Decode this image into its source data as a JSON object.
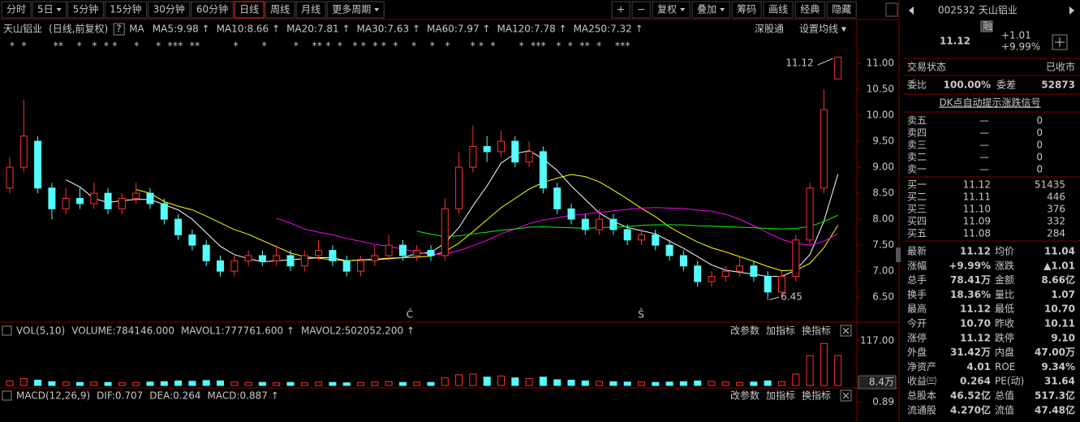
{
  "toolbar": {
    "periods": [
      {
        "label": "分时"
      },
      {
        "label": "5日",
        "dropdown": true
      },
      {
        "label": "5分钟"
      },
      {
        "label": "15分钟"
      },
      {
        "label": "30分钟"
      },
      {
        "label": "60分钟"
      },
      {
        "label": "日线",
        "active": true
      },
      {
        "label": "周线"
      },
      {
        "label": "月线"
      },
      {
        "label": "更多周期",
        "dropdown": true
      }
    ],
    "tools": [
      {
        "label": "+"
      },
      {
        "label": "−"
      },
      {
        "label": "复权",
        "dropdown": true,
        "active": true
      },
      {
        "label": "叠加",
        "dropdown": true
      },
      {
        "label": "筹码"
      },
      {
        "label": "画线"
      },
      {
        "label": "经典"
      },
      {
        "label": "隐藏"
      }
    ]
  },
  "info": {
    "name": "天山铝业",
    "period": "(日线,前复权)",
    "help": "?",
    "ma": "MA",
    "mas": [
      {
        "label": "MA5:9.98 ↑",
        "color": "#ffffff"
      },
      {
        "label": "MA10:8.66 ↑",
        "color": "#ffff00"
      },
      {
        "label": "MA20:7.81 ↑",
        "color": "#ff00ff"
      },
      {
        "label": "MA30:7.63 ↑",
        "color": "#00ff00"
      },
      {
        "label": "MA60:7.97 ↑",
        "color": "#d0d0d0"
      },
      {
        "label": "MA120:7.78 ↑",
        "color": "#54a8ff"
      },
      {
        "label": "MA250:7.32 ↑",
        "color": "#ffffff"
      }
    ],
    "links": [
      "深股通",
      "设置均线 ▾"
    ]
  },
  "chart_data": [
    {
      "type": "candlestick",
      "color_up": "#ff3232",
      "color_down": "#54fcfc",
      "markers": "*  *        **    *   *  * *     *     *  ***  **          *       *        *    ** *  *   * *  * *  *    *    *   *      * *  *       *  ***   *  *  **  *    ***",
      "open": [
        8.6,
        9.0,
        9.5,
        8.6,
        8.2,
        8.4,
        8.3,
        8.5,
        8.2,
        8.4,
        8.5,
        8.3,
        8.0,
        7.7,
        7.5,
        7.2,
        7.0,
        7.2,
        7.3,
        7.2,
        7.3,
        7.1,
        7.3,
        7.4,
        7.2,
        7.0,
        7.2,
        7.3,
        7.5,
        7.3,
        7.4,
        7.3,
        8.2,
        9.0,
        9.4,
        9.3,
        9.5,
        9.1,
        9.3,
        8.6,
        8.2,
        8.0,
        7.8,
        8.0,
        7.8,
        7.6,
        7.7,
        7.5,
        7.3,
        7.1,
        6.8,
        6.9,
        7.0,
        7.1,
        6.9,
        6.6,
        6.9,
        7.6,
        8.6,
        10.7
      ],
      "high": [
        9.2,
        10.3,
        9.6,
        8.7,
        8.6,
        8.6,
        8.7,
        8.6,
        8.5,
        8.7,
        8.6,
        8.4,
        8.1,
        7.8,
        7.6,
        7.3,
        7.3,
        7.4,
        7.4,
        7.5,
        7.4,
        7.4,
        7.6,
        7.5,
        7.3,
        7.3,
        7.5,
        7.7,
        7.6,
        7.5,
        7.5,
        8.4,
        9.3,
        9.8,
        9.6,
        9.7,
        9.6,
        9.5,
        9.4,
        8.7,
        8.3,
        8.1,
        8.2,
        8.1,
        7.9,
        7.8,
        7.8,
        7.6,
        7.4,
        7.2,
        7.0,
        7.1,
        7.3,
        7.2,
        7.0,
        7.0,
        7.7,
        8.7,
        10.5,
        11.12
      ],
      "low": [
        8.5,
        8.9,
        8.5,
        8.0,
        8.1,
        8.2,
        8.2,
        8.1,
        8.1,
        8.3,
        8.2,
        7.9,
        7.6,
        7.4,
        7.1,
        6.9,
        6.9,
        7.1,
        7.1,
        7.1,
        7.0,
        7.0,
        7.2,
        7.1,
        6.9,
        6.9,
        7.1,
        7.2,
        7.2,
        7.2,
        7.2,
        7.2,
        8.1,
        8.9,
        9.1,
        9.2,
        9.0,
        9.0,
        8.5,
        8.1,
        7.9,
        7.7,
        7.7,
        7.7,
        7.5,
        7.5,
        7.4,
        7.2,
        7.0,
        6.7,
        6.7,
        6.8,
        6.9,
        6.8,
        6.45,
        6.5,
        6.8,
        7.5,
        8.5,
        10.7
      ],
      "close": [
        9.0,
        9.6,
        8.6,
        8.2,
        8.4,
        8.3,
        8.5,
        8.2,
        8.4,
        8.5,
        8.3,
        8.0,
        7.7,
        7.5,
        7.2,
        7.0,
        7.2,
        7.3,
        7.2,
        7.3,
        7.1,
        7.3,
        7.4,
        7.2,
        7.0,
        7.2,
        7.3,
        7.5,
        7.3,
        7.4,
        7.3,
        8.2,
        9.0,
        9.4,
        9.3,
        9.5,
        9.1,
        9.3,
        8.6,
        8.2,
        8.0,
        7.8,
        8.0,
        7.8,
        7.6,
        7.7,
        7.5,
        7.3,
        7.1,
        6.8,
        6.9,
        7.0,
        7.1,
        6.9,
        6.6,
        6.9,
        7.6,
        8.6,
        10.11,
        11.12
      ],
      "ylim": [
        6.05,
        11.5
      ],
      "yticks": [
        {
          "value": 6.5,
          "label": "6.50"
        },
        {
          "value": 7.0,
          "label": "7.00"
        },
        {
          "value": 7.5,
          "label": "7.50"
        },
        {
          "value": 8.0,
          "label": "8.00"
        },
        {
          "value": 8.5,
          "label": "8.50"
        },
        {
          "value": 9.0,
          "label": "9.00"
        },
        {
          "value": 9.5,
          "label": "9.50"
        },
        {
          "value": 10.0,
          "label": "10.00"
        },
        {
          "value": 10.5,
          "label": "10.50"
        },
        {
          "value": 11.0,
          "label": "11.00"
        }
      ],
      "annotations": {
        "high": "11.12",
        "low": "6.45",
        "c": "Ĉ",
        "s": "Ŝ"
      }
    },
    {
      "type": "bar",
      "headers": [
        {
          "label": "VOL(5,10)",
          "color": "#c8c8c8"
        },
        {
          "label": "VOLUME:784146.000",
          "color": "#ffffff"
        },
        {
          "label": "MAVOL1:777761.600 ↑",
          "color": "#ffff00"
        },
        {
          "label": "MAVOL2:502052.200 ↑",
          "color": "#ff00ff"
        }
      ],
      "values": [
        12,
        18,
        14,
        10,
        9,
        8,
        9,
        8,
        7,
        8,
        9,
        10,
        12,
        11,
        13,
        12,
        9,
        8,
        8,
        7,
        8,
        7,
        9,
        8,
        7,
        8,
        9,
        10,
        8,
        9,
        8,
        20,
        28,
        30,
        22,
        25,
        20,
        18,
        22,
        15,
        14,
        12,
        11,
        10,
        9,
        9,
        8,
        9,
        10,
        12,
        11,
        9,
        8,
        9,
        12,
        10,
        30,
        78,
        110,
        78.41
      ],
      "ylim": [
        0,
        117
      ],
      "yticks": [
        {
          "value": 117,
          "label": "117.00"
        },
        {
          "value": 8.4,
          "label": "8.4万"
        }
      ],
      "actions": [
        "改参数",
        "加指标",
        "换指标"
      ]
    },
    {
      "type": "macd",
      "headers": [
        {
          "label": "MACD(12,26,9)",
          "color": "#c8c8c8"
        },
        {
          "label": "DIF:0.707",
          "color": "#ffffff"
        },
        {
          "label": "DEA:0.264",
          "color": "#ffff00"
        },
        {
          "label": "MACD:0.887 ↑",
          "color": "#ff00ff"
        }
      ],
      "ylim": [
        0.4,
        1.2
      ],
      "yticks": [
        0.89
      ],
      "actions": [
        "改参数",
        "加指标",
        "换指标"
      ]
    }
  ],
  "quote": {
    "code": "002532",
    "name": "天山铝业",
    "badge": "融",
    "price": "11.12",
    "change": "+1.01",
    "pct": "+9.99%",
    "status_label": "交易状态",
    "status": "已收市",
    "wb_label": "委比",
    "wb": "100.00%",
    "wc_label": "委差",
    "wc": "52873",
    "signal": "DK点自动提示涨跌信号",
    "sells": [
      [
        "卖五",
        "—",
        "0"
      ],
      [
        "卖四",
        "—",
        "0"
      ],
      [
        "卖三",
        "—",
        "0"
      ],
      [
        "卖二",
        "—",
        "0"
      ],
      [
        "卖一",
        "—",
        "0"
      ]
    ],
    "buys": [
      [
        "买一",
        "11.12",
        "51435"
      ],
      [
        "买二",
        "11.11",
        "446"
      ],
      [
        "买三",
        "11.10",
        "376"
      ],
      [
        "买四",
        "11.09",
        "332"
      ],
      [
        "买五",
        "11.08",
        "284"
      ]
    ],
    "stats": [
      [
        {
          "label": "最新",
          "value": "11.12",
          "color": "#ff3232"
        },
        {
          "label": "均价",
          "value": "11.04",
          "color": "#ff3232"
        }
      ],
      [
        {
          "label": "涨幅",
          "value": "+9.99%",
          "color": "#ff3232"
        },
        {
          "label": "涨跌",
          "value": "▲1.01",
          "color": "#ff3232"
        }
      ],
      [
        {
          "label": "总手",
          "value": "78.41万",
          "color": "#ffffff"
        },
        {
          "label": "金额",
          "value": "8.66亿",
          "color": "#54fcfc"
        }
      ],
      [
        {
          "label": "换手",
          "value": "18.36%",
          "color": "#ffffff"
        },
        {
          "label": "量比",
          "value": "1.07",
          "color": "#ff3232"
        }
      ],
      [
        {
          "label": "最高",
          "value": "11.12",
          "color": "#ff3232"
        },
        {
          "label": "最低",
          "value": "10.70",
          "color": "#ff3232"
        }
      ],
      [
        {
          "label": "今开",
          "value": "10.70",
          "color": "#ff3232"
        },
        {
          "label": "昨收",
          "value": "10.11",
          "color": "#ffffff"
        }
      ],
      [
        {
          "label": "涨停",
          "value": "11.12",
          "color": "#ff3232"
        },
        {
          "label": "跌停",
          "value": "9.10",
          "color": "#00e600"
        }
      ],
      [
        {
          "label": "外盘",
          "value": "31.42万",
          "color": "#ff3232"
        },
        {
          "label": "内盘",
          "value": "47.00万",
          "color": "#00e600"
        }
      ],
      [
        {
          "label": "净资产",
          "value": "4.01",
          "color": "#ffffff"
        },
        {
          "label": "ROE",
          "value": "9.34%",
          "color": "#ffffff"
        }
      ],
      [
        {
          "label": "收益㈢",
          "value": "0.264",
          "color": "#ffffff"
        },
        {
          "label": "PE(动)",
          "value": "31.64",
          "color": "#ffffff"
        }
      ],
      [
        {
          "label": "总股本",
          "value": "46.52亿",
          "color": "#ffffff"
        },
        {
          "label": "总值",
          "value": "517.3亿",
          "color": "#ffffff"
        }
      ],
      [
        {
          "label": "流通股",
          "value": "4.270亿",
          "color": "#ffffff"
        },
        {
          "label": "流值",
          "value": "47.48亿",
          "color": "#ffffff"
        }
      ]
    ]
  }
}
